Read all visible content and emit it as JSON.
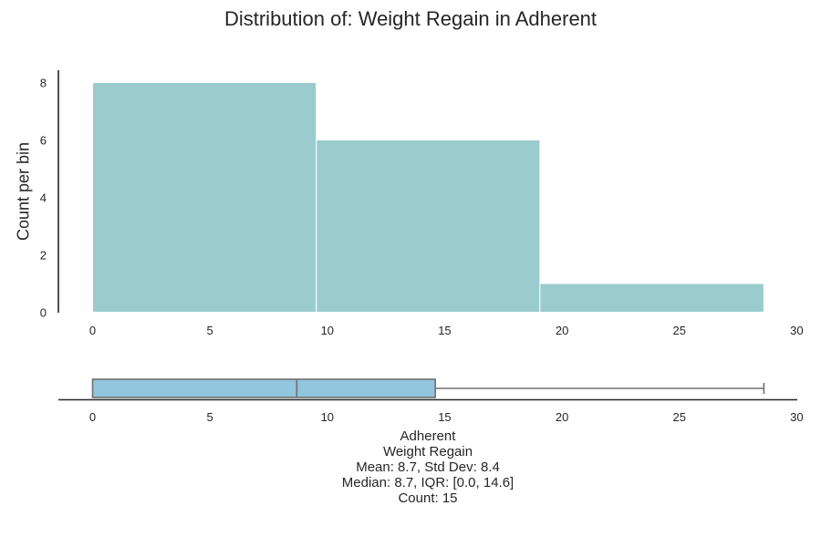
{
  "chart_data": [
    {
      "type": "histogram",
      "title": "Distribution of: Weight Regain in Adherent",
      "ylabel": "Count per bin",
      "xlabel": "",
      "bins": [
        {
          "start": 0.0,
          "end": 9.53,
          "count": 8
        },
        {
          "start": 9.53,
          "end": 19.06,
          "count": 6
        },
        {
          "start": 19.06,
          "end": 28.6,
          "count": 1
        }
      ],
      "xlim": [
        -1.5,
        30
      ],
      "ylim": [
        0,
        8.4
      ],
      "xticks": [
        0,
        5,
        10,
        15,
        20,
        25,
        30
      ],
      "yticks": [
        0,
        2,
        4,
        6,
        8
      ],
      "grid": false,
      "bar_color": "#9ACCCD"
    },
    {
      "type": "boxplot",
      "min": 0.0,
      "q1": 0.0,
      "median": 8.7,
      "q3": 14.6,
      "max": 28.6,
      "xlim": [
        -1.5,
        30
      ],
      "xticks": [
        0,
        5,
        10,
        15,
        20,
        25,
        30
      ],
      "box_color": "#92C5DE",
      "caption": [
        "Adherent",
        "Weight Regain",
        "Mean: 8.7, Std Dev: 8.4",
        "Median: 8.7, IQR: [0.0, 14.6]",
        "Count: 15"
      ]
    }
  ]
}
